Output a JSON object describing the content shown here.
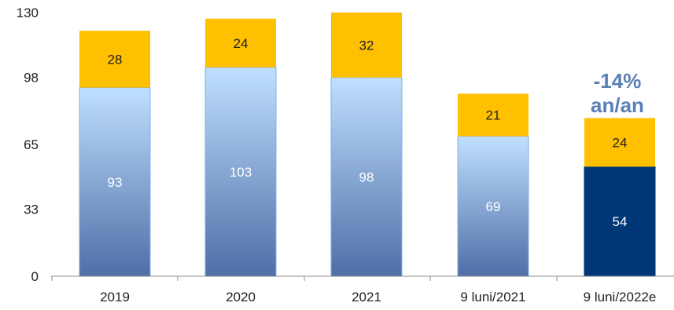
{
  "chart_data": {
    "type": "bar",
    "stacked": true,
    "categories": [
      "2019",
      "2020",
      "2021",
      "9 luni/2021",
      "9 luni/2022e"
    ],
    "series": [
      {
        "values": [
          93,
          103,
          98,
          69,
          54
        ]
      },
      {
        "values": [
          28,
          24,
          32,
          21,
          24
        ]
      }
    ],
    "yticks": [
      "0",
      "33",
      "65",
      "98",
      "130"
    ],
    "ylim": [
      0,
      130
    ],
    "grid": false,
    "legend": "none",
    "annotation": {
      "line1": "-14%",
      "line2": "an/an"
    },
    "colors": {
      "base_gradient_top": "#BFE0FF",
      "base_gradient_bottom": "#4F6EA7",
      "base_highlight": "#003776",
      "top_segment": "#FFC000",
      "annotation": "#5A7FB5",
      "axis": "#8C8C8C",
      "text": "#222222",
      "label_light": "#FFFFFF",
      "label_dark": "#222222"
    }
  }
}
